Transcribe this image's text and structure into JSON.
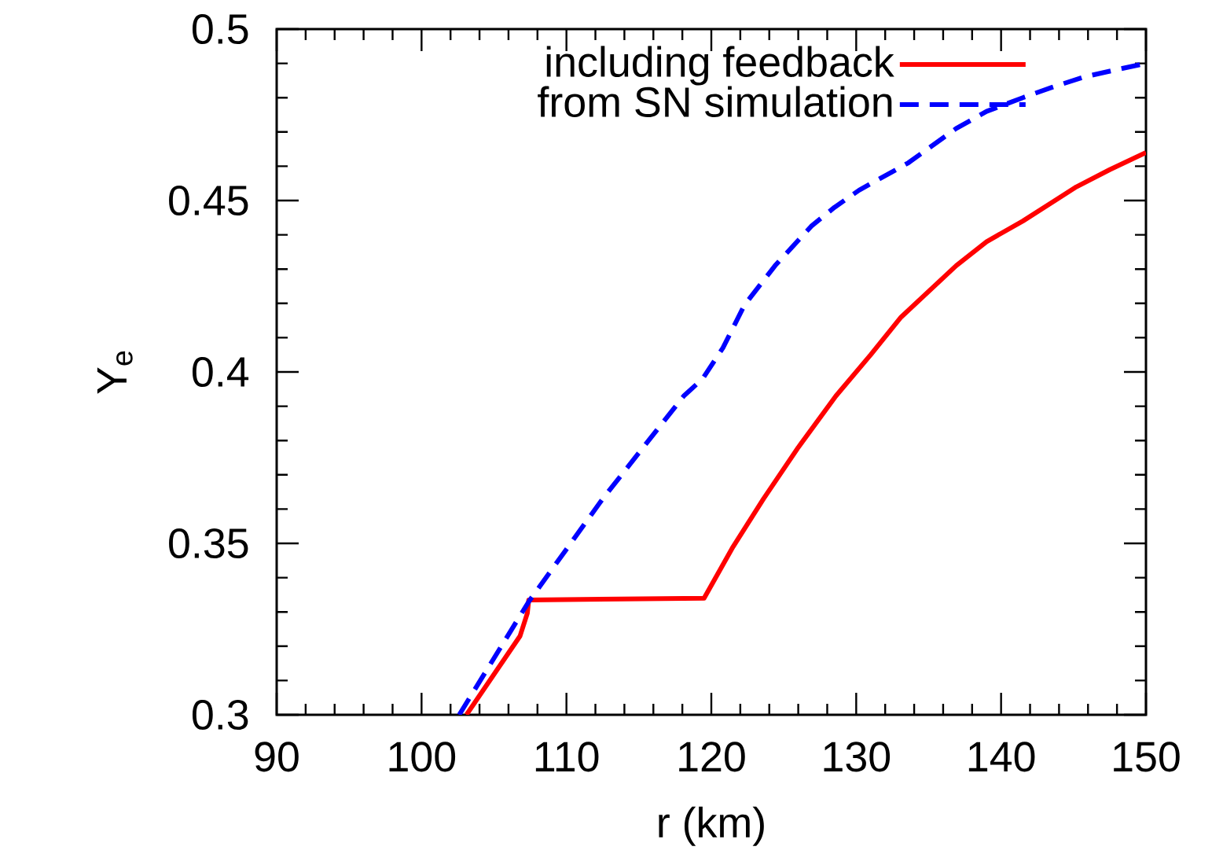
{
  "chart_data": {
    "type": "line",
    "xlabel": "r (km)",
    "ylabel": "Y$_{e}$",
    "xlim": [
      90,
      150
    ],
    "ylim": [
      0.3,
      0.5
    ],
    "xticks": [
      90,
      100,
      110,
      120,
      130,
      140,
      150
    ],
    "yticks": [
      0.3,
      0.35,
      0.4,
      0.45,
      0.5
    ],
    "legend": "top right",
    "grid": false,
    "series": [
      {
        "name": "including feedback",
        "color": "#ff0000",
        "line_style": "solid",
        "x": [
          103.1,
          106.8,
          107.3,
          107.4,
          119.5,
          121.5,
          123.6,
          126,
          128.6,
          131,
          133.1,
          136.9,
          139,
          141.5,
          145.2,
          147.5,
          150
        ],
        "values": [
          0.3,
          0.323,
          0.3296,
          0.3335,
          0.334,
          0.349,
          0.363,
          0.378,
          0.393,
          0.405,
          0.416,
          0.431,
          0.438,
          0.444,
          0.454,
          0.459,
          0.464
        ]
      },
      {
        "name": "from SN simulation",
        "color": "#0000ff",
        "line_style": "dashed",
        "x": [
          102.6,
          107.4,
          112.5,
          118.1,
          119.4,
          120.8,
          122.3,
          124.4,
          126.9,
          128.5,
          130.2,
          133.6,
          136.9,
          139,
          141.5,
          143.5,
          145.7,
          147.8,
          150
        ],
        "values": [
          0.3,
          0.333,
          0.363,
          0.393,
          0.398,
          0.407,
          0.4196,
          0.431,
          0.4425,
          0.448,
          0.453,
          0.461,
          0.471,
          0.476,
          0.48,
          0.483,
          0.486,
          0.488,
          0.49
        ]
      }
    ]
  }
}
